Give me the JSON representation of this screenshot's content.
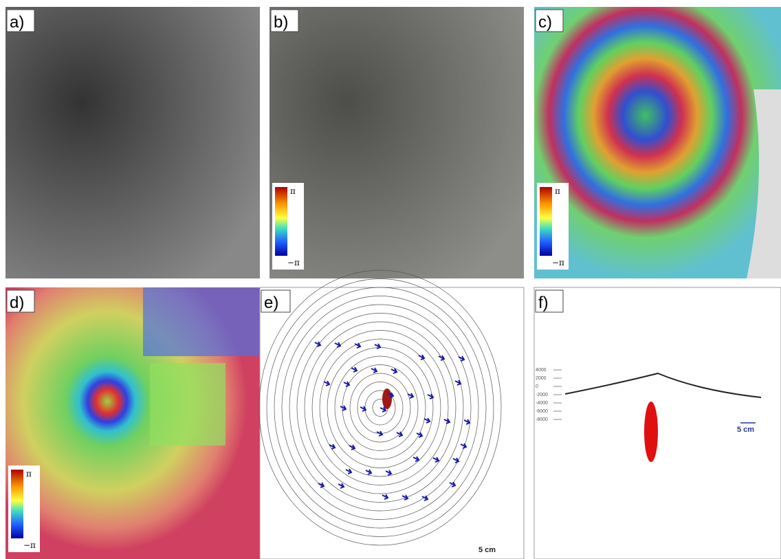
{
  "panels": [
    {
      "label": "a)"
    },
    {
      "label": "b)",
      "colorbar": {
        "max": "π",
        "min": "−π"
      }
    },
    {
      "label": "c)",
      "colorbar": {
        "max": "π",
        "min": "−π"
      }
    },
    {
      "label": "d)",
      "colorbar": {
        "max": "π",
        "min": "−π"
      }
    },
    {
      "label": "e)",
      "scale": "5 cm"
    },
    {
      "label": "f)",
      "scale": "5 cm",
      "depth_ticks": [
        4000,
        2000,
        0,
        -2000,
        -4000,
        -6000,
        -8000
      ]
    }
  ]
}
